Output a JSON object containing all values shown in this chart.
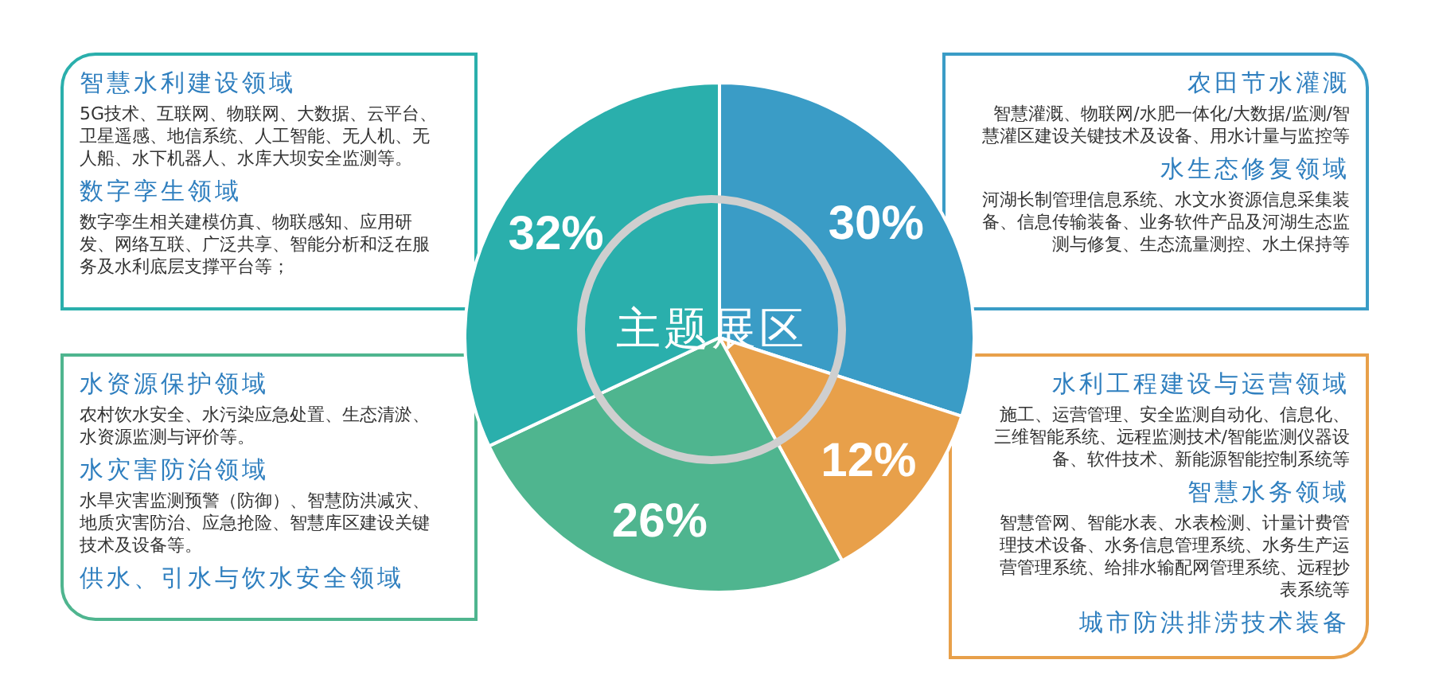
{
  "chart_data": {
    "type": "pie",
    "title": "主题展区",
    "categories": [
      null,
      null,
      null,
      null
    ],
    "values": [
      30,
      12,
      26,
      32
    ],
    "colors": [
      "#3a9cc6",
      "#e8a04a",
      "#4fb58f",
      "#2aafac"
    ],
    "value_labels": [
      "30%",
      "12%",
      "26%",
      "32%"
    ],
    "legend": false,
    "annotations": [
      "智慧水利建设领域",
      "5G技术、互联网、物联网、大数据、云平台、卫星遥感、地信系统、人工智能、无人机、无人船、水下机器人、水库大坝安全监测等。",
      "数字孪生领域",
      "数字孪生相关建模仿真、物联感知、应用研发、网络互联、广泛共享、智能分析和泛在服务及水利底层支撑平台等；",
      "农田节水灌溉",
      "智慧灌溉、物联网/水肥一体化/大数据/监测/智慧灌区建设关键技术及设备、用水计量与监控等",
      "水生态修复领域",
      "河湖长制管理信息系统、水文水资源信息采集装备、信息传输装备、业务软件产品及河湖生态监测与修复、生态流量测控、水土保持等",
      "水资源保护领域",
      "农村饮水安全、水污染应急处置、生态清淤、水资源监测与评价等。",
      "水灾害防治领域",
      "水旱灾害监测预警（防御）、智慧防洪减灾、地质灾害防治、应急抢险、智慧库区建设关键技术及设备等。",
      "供水、引水与饮水安全领域",
      "水利工程建设与运营领域",
      "施工、运营管理、安全监测自动化、信息化、三维智能系统、远程监测技术/智能监测仪器设备、软件技术、新能源智能控制系统等",
      "智慧水务领域",
      "智慧管网、智能水表、水表检测、计量计费管理技术设备、水务信息管理系统、水务生产运营管理系统、给排水输配网管理系统、远程抄表系统等",
      "城市防洪排涝技术装备"
    ]
  }
}
